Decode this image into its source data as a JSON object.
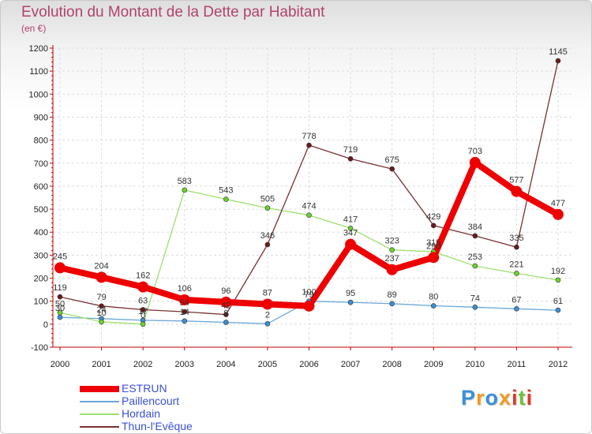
{
  "chart_data": {
    "type": "line",
    "title": "Evolution du Montant de la Dette par Habitant",
    "subtitle": "(en €)",
    "xlabel": "",
    "ylabel": "",
    "x": [
      "2000",
      "2001",
      "2002",
      "2003",
      "2004",
      "2005",
      "2006",
      "2007",
      "2008",
      "2009",
      "2010",
      "2011",
      "2012"
    ],
    "ylim": [
      -100,
      1200
    ],
    "yticks": [
      -100,
      0,
      100,
      200,
      300,
      400,
      500,
      600,
      700,
      800,
      900,
      1000,
      1100,
      1200
    ],
    "grid": true,
    "legend_position": "bottom-left",
    "series": [
      {
        "name": "ESTRUN",
        "color": "#ee0000",
        "point_color": "#ee0000",
        "values": [
          245,
          204,
          162,
          106,
          96,
          87,
          79,
          347,
          237,
          290,
          703,
          577,
          477
        ]
      },
      {
        "name": "Paillencourt",
        "color": "#6aa7d9",
        "point_color": "#3b8fd4",
        "values": [
          30,
          24,
          17,
          14,
          8,
          2,
          100,
          95,
          89,
          80,
          74,
          67,
          61
        ]
      },
      {
        "name": "Hordain",
        "color": "#9be06c",
        "point_color": "#6cd22e",
        "values": [
          50,
          10,
          0,
          583,
          543,
          505,
          474,
          417,
          323,
          315,
          253,
          221,
          192
        ]
      },
      {
        "name": "Thun-l'Evêque",
        "color": "#7a3030",
        "point_color": "#6a1a1a",
        "values": [
          119,
          79,
          63,
          54,
          42,
          346,
          778,
          719,
          675,
          429,
          384,
          335,
          1145
        ]
      }
    ],
    "point_labels": [
      {
        "series": 0,
        "labels": [
          "245",
          "204",
          "162",
          "106",
          "96",
          "87",
          "79",
          "347",
          "237",
          "290",
          "703",
          "577",
          "477"
        ]
      },
      {
        "series": 1,
        "labels": [
          "30",
          "24",
          "17",
          "14",
          "8",
          "2",
          "100",
          "95",
          "89",
          "80",
          "74",
          "67",
          "61"
        ]
      },
      {
        "series": 2,
        "labels": [
          "50",
          "10",
          "0",
          "583",
          "543",
          "505",
          "474",
          "417",
          "323",
          "315",
          "253",
          "221",
          "192"
        ]
      },
      {
        "series": 3,
        "labels": [
          "119",
          "79",
          "63",
          "54",
          "42",
          "346",
          "778",
          "719",
          "675",
          "429",
          "384",
          "335",
          "1145"
        ]
      }
    ]
  },
  "logo": {
    "text": "Proxiti",
    "letters": [
      "P",
      "r",
      "o",
      "x",
      "i",
      "t",
      "i"
    ],
    "colors": [
      "#3a8fd8",
      "#f39a1e",
      "#3a8fd8",
      "#f39a1e",
      "#e03a2e",
      "#6cc23a",
      "#e03a2e"
    ]
  }
}
